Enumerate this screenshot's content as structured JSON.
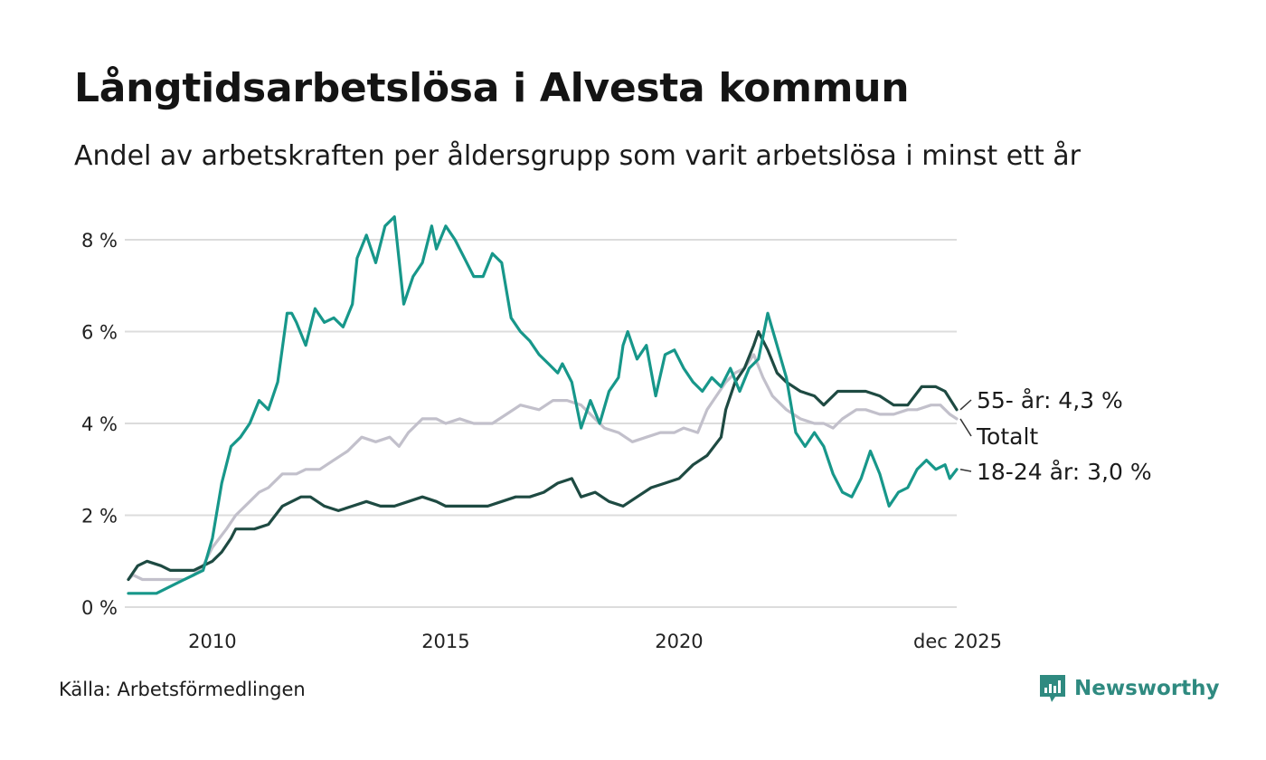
{
  "title": "Långtidsarbetslösa i Alvesta kommun",
  "subtitle": "Andel av arbetskraften per åldersgrupp som varit arbetslösa i minst ett år",
  "source": "Källa: Arbetsförmedlingen",
  "brand": "Newsworthy",
  "colors": {
    "young": "#17978a",
    "old": "#1e4a42",
    "total": "#c2c0cb",
    "grid": "#dcdcdc",
    "brand": "#2f8a80"
  },
  "chart_data": {
    "type": "line",
    "title": "Långtidsarbetslösa i Alvesta kommun",
    "xlabel": "",
    "ylabel": "",
    "ylim": [
      0,
      8
    ],
    "xlim": [
      2008.2,
      2025.95
    ],
    "y_ticks": [
      {
        "value": 0,
        "label": "0 %"
      },
      {
        "value": 2,
        "label": "2 %"
      },
      {
        "value": 4,
        "label": "4 %"
      },
      {
        "value": 6,
        "label": "6 %"
      },
      {
        "value": 8,
        "label": "8 %"
      }
    ],
    "x_ticks": [
      {
        "value": 2010,
        "label": "2010"
      },
      {
        "value": 2015,
        "label": "2015"
      },
      {
        "value": 2020,
        "label": "2020"
      },
      {
        "value": 2025.95,
        "label": "dec 2025"
      }
    ],
    "series": [
      {
        "key": "total",
        "name": "Totalt",
        "end_label": "Totalt",
        "points": [
          [
            2008.2,
            0.6
          ],
          [
            2008.3,
            0.7
          ],
          [
            2008.5,
            0.6
          ],
          [
            2009.0,
            0.6
          ],
          [
            2009.4,
            0.6
          ],
          [
            2009.6,
            0.7
          ],
          [
            2009.8,
            0.9
          ],
          [
            2010.0,
            1.3
          ],
          [
            2010.3,
            1.7
          ],
          [
            2010.5,
            2.0
          ],
          [
            2010.8,
            2.3
          ],
          [
            2011.0,
            2.5
          ],
          [
            2011.2,
            2.6
          ],
          [
            2011.5,
            2.9
          ],
          [
            2011.8,
            2.9
          ],
          [
            2012.0,
            3.0
          ],
          [
            2012.3,
            3.0
          ],
          [
            2012.6,
            3.2
          ],
          [
            2012.9,
            3.4
          ],
          [
            2013.2,
            3.7
          ],
          [
            2013.5,
            3.6
          ],
          [
            2013.8,
            3.7
          ],
          [
            2014.0,
            3.5
          ],
          [
            2014.2,
            3.8
          ],
          [
            2014.5,
            4.1
          ],
          [
            2014.8,
            4.1
          ],
          [
            2015.0,
            4.0
          ],
          [
            2015.3,
            4.1
          ],
          [
            2015.6,
            4.0
          ],
          [
            2016.0,
            4.0
          ],
          [
            2016.3,
            4.2
          ],
          [
            2016.6,
            4.4
          ],
          [
            2017.0,
            4.3
          ],
          [
            2017.3,
            4.5
          ],
          [
            2017.6,
            4.5
          ],
          [
            2017.9,
            4.4
          ],
          [
            2018.1,
            4.2
          ],
          [
            2018.4,
            3.9
          ],
          [
            2018.7,
            3.8
          ],
          [
            2019.0,
            3.6
          ],
          [
            2019.3,
            3.7
          ],
          [
            2019.6,
            3.8
          ],
          [
            2019.9,
            3.8
          ],
          [
            2020.1,
            3.9
          ],
          [
            2020.4,
            3.8
          ],
          [
            2020.6,
            4.3
          ],
          [
            2020.8,
            4.6
          ],
          [
            2021.0,
            4.9
          ],
          [
            2021.2,
            5.1
          ],
          [
            2021.4,
            5.2
          ],
          [
            2021.6,
            5.5
          ],
          [
            2021.8,
            5.0
          ],
          [
            2022.0,
            4.6
          ],
          [
            2022.3,
            4.3
          ],
          [
            2022.6,
            4.1
          ],
          [
            2022.9,
            4.0
          ],
          [
            2023.1,
            4.0
          ],
          [
            2023.3,
            3.9
          ],
          [
            2023.5,
            4.1
          ],
          [
            2023.8,
            4.3
          ],
          [
            2024.0,
            4.3
          ],
          [
            2024.3,
            4.2
          ],
          [
            2024.6,
            4.2
          ],
          [
            2024.9,
            4.3
          ],
          [
            2025.1,
            4.3
          ],
          [
            2025.4,
            4.4
          ],
          [
            2025.6,
            4.4
          ],
          [
            2025.8,
            4.2
          ],
          [
            2025.95,
            4.1
          ]
        ]
      },
      {
        "key": "old",
        "name": "55- år",
        "end_label": "55- år: 4,3 %",
        "points": [
          [
            2008.2,
            0.6
          ],
          [
            2008.4,
            0.9
          ],
          [
            2008.6,
            1.0
          ],
          [
            2008.9,
            0.9
          ],
          [
            2009.1,
            0.8
          ],
          [
            2009.3,
            0.8
          ],
          [
            2009.6,
            0.8
          ],
          [
            2009.8,
            0.9
          ],
          [
            2010.0,
            1.0
          ],
          [
            2010.2,
            1.2
          ],
          [
            2010.4,
            1.5
          ],
          [
            2010.5,
            1.7
          ],
          [
            2010.7,
            1.7
          ],
          [
            2010.9,
            1.7
          ],
          [
            2011.2,
            1.8
          ],
          [
            2011.5,
            2.2
          ],
          [
            2011.7,
            2.3
          ],
          [
            2011.9,
            2.4
          ],
          [
            2012.1,
            2.4
          ],
          [
            2012.4,
            2.2
          ],
          [
            2012.7,
            2.1
          ],
          [
            2013.0,
            2.2
          ],
          [
            2013.3,
            2.3
          ],
          [
            2013.6,
            2.2
          ],
          [
            2013.9,
            2.2
          ],
          [
            2014.2,
            2.3
          ],
          [
            2014.5,
            2.4
          ],
          [
            2014.8,
            2.3
          ],
          [
            2015.0,
            2.2
          ],
          [
            2015.3,
            2.2
          ],
          [
            2015.6,
            2.2
          ],
          [
            2015.9,
            2.2
          ],
          [
            2016.2,
            2.3
          ],
          [
            2016.5,
            2.4
          ],
          [
            2016.8,
            2.4
          ],
          [
            2017.1,
            2.5
          ],
          [
            2017.4,
            2.7
          ],
          [
            2017.7,
            2.8
          ],
          [
            2017.9,
            2.4
          ],
          [
            2018.2,
            2.5
          ],
          [
            2018.5,
            2.3
          ],
          [
            2018.8,
            2.2
          ],
          [
            2019.1,
            2.4
          ],
          [
            2019.4,
            2.6
          ],
          [
            2019.7,
            2.7
          ],
          [
            2020.0,
            2.8
          ],
          [
            2020.3,
            3.1
          ],
          [
            2020.6,
            3.3
          ],
          [
            2020.9,
            3.7
          ],
          [
            2021.0,
            4.3
          ],
          [
            2021.2,
            4.9
          ],
          [
            2021.4,
            5.2
          ],
          [
            2021.6,
            5.7
          ],
          [
            2021.7,
            6.0
          ],
          [
            2021.9,
            5.6
          ],
          [
            2022.1,
            5.1
          ],
          [
            2022.3,
            4.9
          ],
          [
            2022.6,
            4.7
          ],
          [
            2022.9,
            4.6
          ],
          [
            2023.1,
            4.4
          ],
          [
            2023.4,
            4.7
          ],
          [
            2023.7,
            4.7
          ],
          [
            2024.0,
            4.7
          ],
          [
            2024.3,
            4.6
          ],
          [
            2024.6,
            4.4
          ],
          [
            2024.9,
            4.4
          ],
          [
            2025.2,
            4.8
          ],
          [
            2025.5,
            4.8
          ],
          [
            2025.7,
            4.7
          ],
          [
            2025.95,
            4.3
          ]
        ]
      },
      {
        "key": "young",
        "name": "18-24 år",
        "end_label": "18-24 år: 3,0 %",
        "points": [
          [
            2008.2,
            0.3
          ],
          [
            2008.4,
            0.3
          ],
          [
            2008.6,
            0.3
          ],
          [
            2008.8,
            0.3
          ],
          [
            2009.0,
            0.4
          ],
          [
            2009.2,
            0.5
          ],
          [
            2009.4,
            0.6
          ],
          [
            2009.6,
            0.7
          ],
          [
            2009.8,
            0.8
          ],
          [
            2010.0,
            1.5
          ],
          [
            2010.2,
            2.7
          ],
          [
            2010.4,
            3.5
          ],
          [
            2010.6,
            3.7
          ],
          [
            2010.8,
            4.0
          ],
          [
            2011.0,
            4.5
          ],
          [
            2011.2,
            4.3
          ],
          [
            2011.4,
            4.9
          ],
          [
            2011.6,
            6.4
          ],
          [
            2011.7,
            6.4
          ],
          [
            2011.8,
            6.2
          ],
          [
            2012.0,
            5.7
          ],
          [
            2012.2,
            6.5
          ],
          [
            2012.4,
            6.2
          ],
          [
            2012.6,
            6.3
          ],
          [
            2012.8,
            6.1
          ],
          [
            2013.0,
            6.6
          ],
          [
            2013.1,
            7.6
          ],
          [
            2013.3,
            8.1
          ],
          [
            2013.5,
            7.5
          ],
          [
            2013.7,
            8.3
          ],
          [
            2013.9,
            8.5
          ],
          [
            2014.1,
            6.6
          ],
          [
            2014.3,
            7.2
          ],
          [
            2014.5,
            7.5
          ],
          [
            2014.7,
            8.3
          ],
          [
            2014.8,
            7.8
          ],
          [
            2015.0,
            8.3
          ],
          [
            2015.2,
            8.0
          ],
          [
            2015.4,
            7.6
          ],
          [
            2015.6,
            7.2
          ],
          [
            2015.8,
            7.2
          ],
          [
            2016.0,
            7.7
          ],
          [
            2016.2,
            7.5
          ],
          [
            2016.4,
            6.3
          ],
          [
            2016.6,
            6.0
          ],
          [
            2016.8,
            5.8
          ],
          [
            2017.0,
            5.5
          ],
          [
            2017.2,
            5.3
          ],
          [
            2017.4,
            5.1
          ],
          [
            2017.5,
            5.3
          ],
          [
            2017.7,
            4.9
          ],
          [
            2017.9,
            3.9
          ],
          [
            2018.1,
            4.5
          ],
          [
            2018.3,
            4.0
          ],
          [
            2018.5,
            4.7
          ],
          [
            2018.7,
            5.0
          ],
          [
            2018.8,
            5.7
          ],
          [
            2018.9,
            6.0
          ],
          [
            2019.1,
            5.4
          ],
          [
            2019.3,
            5.7
          ],
          [
            2019.5,
            4.6
          ],
          [
            2019.7,
            5.5
          ],
          [
            2019.9,
            5.6
          ],
          [
            2020.1,
            5.2
          ],
          [
            2020.3,
            4.9
          ],
          [
            2020.5,
            4.7
          ],
          [
            2020.7,
            5.0
          ],
          [
            2020.9,
            4.8
          ],
          [
            2021.1,
            5.2
          ],
          [
            2021.3,
            4.7
          ],
          [
            2021.5,
            5.2
          ],
          [
            2021.7,
            5.4
          ],
          [
            2021.9,
            6.4
          ],
          [
            2022.1,
            5.7
          ],
          [
            2022.3,
            5.0
          ],
          [
            2022.5,
            3.8
          ],
          [
            2022.7,
            3.5
          ],
          [
            2022.9,
            3.8
          ],
          [
            2023.1,
            3.5
          ],
          [
            2023.3,
            2.9
          ],
          [
            2023.5,
            2.5
          ],
          [
            2023.7,
            2.4
          ],
          [
            2023.9,
            2.8
          ],
          [
            2024.1,
            3.4
          ],
          [
            2024.3,
            2.9
          ],
          [
            2024.5,
            2.2
          ],
          [
            2024.7,
            2.5
          ],
          [
            2024.9,
            2.6
          ],
          [
            2025.1,
            3.0
          ],
          [
            2025.3,
            3.2
          ],
          [
            2025.5,
            3.0
          ],
          [
            2025.7,
            3.1
          ],
          [
            2025.8,
            2.8
          ],
          [
            2025.95,
            3.0
          ]
        ]
      }
    ]
  }
}
